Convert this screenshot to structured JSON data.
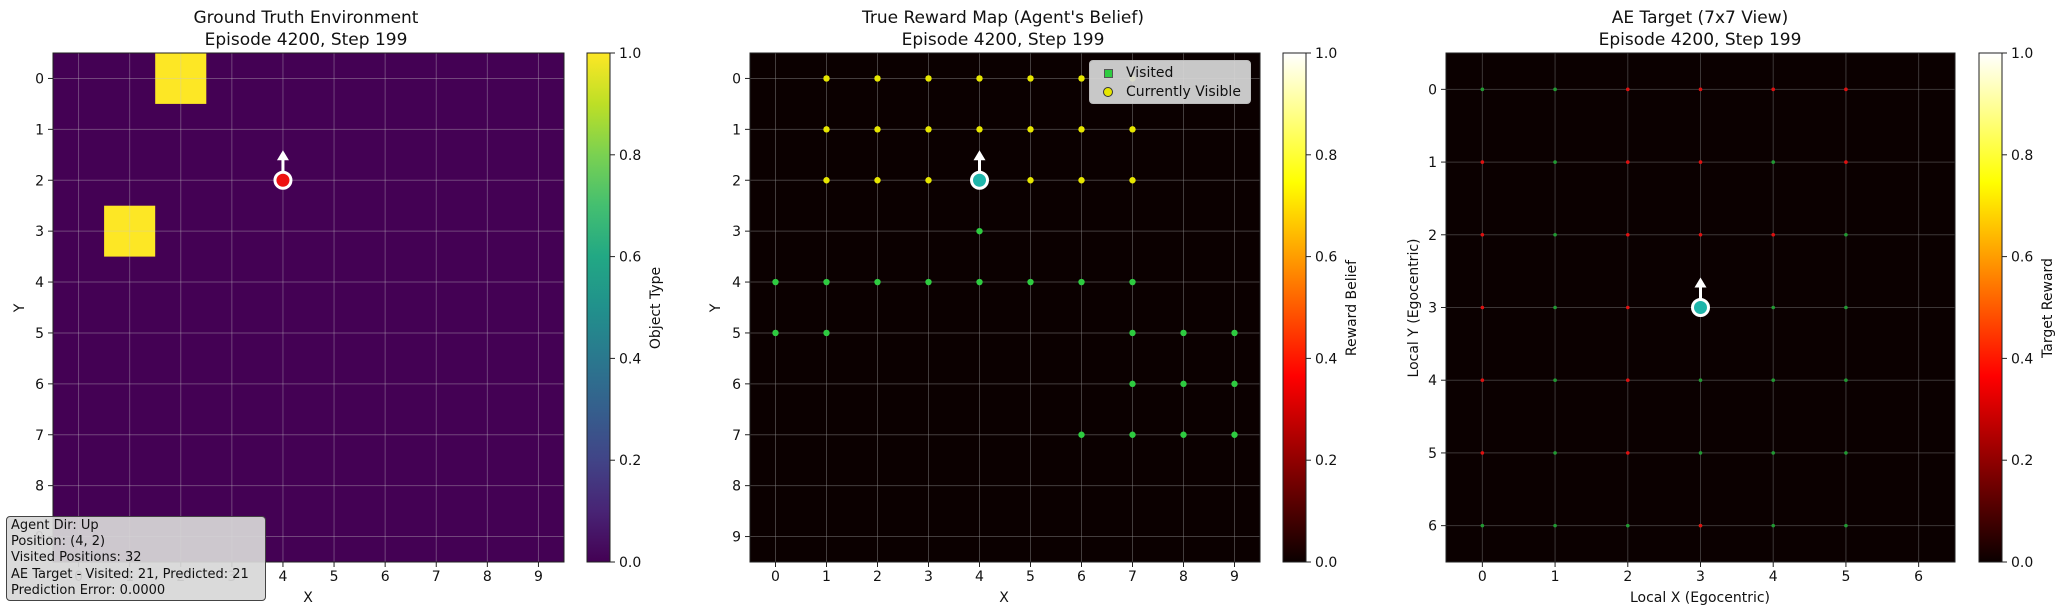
{
  "chart_data": [
    {
      "type": "heatmap",
      "title": "Ground Truth Environment",
      "subtitle": "Episode 4200, Step 199",
      "xlabel": "X",
      "ylabel": "Y",
      "x_ticks": [
        "0",
        "1",
        "2",
        "3",
        "4",
        "5",
        "6",
        "7",
        "8",
        "9"
      ],
      "y_ticks": [
        "0",
        "1",
        "2",
        "3",
        "4",
        "5",
        "6",
        "7",
        "8",
        "9"
      ],
      "grid_size": 10,
      "background_value": 0.0,
      "cells": [
        {
          "x": 2,
          "y": 0,
          "value": 1.0
        },
        {
          "x": 1,
          "y": 3,
          "value": 1.0
        }
      ],
      "agent": {
        "x": 4,
        "y": 2,
        "direction": "up",
        "color": "#ee1111"
      },
      "colorbar": {
        "label": "Object Type",
        "colormap": "viridis",
        "ticks": [
          "0.0",
          "0.2",
          "0.4",
          "0.6",
          "0.8",
          "1.0"
        ],
        "range": [
          0,
          1
        ]
      },
      "info_box": [
        "Agent Dir: Up",
        "Position: (4, 2)",
        "Visited Positions: 32",
        "AE Target - Visited: 21, Predicted: 21",
        "Prediction Error: 0.0000"
      ]
    },
    {
      "type": "heatmap",
      "title": "True Reward Map (Agent's Belief)",
      "subtitle": "Episode 4200, Step 199",
      "xlabel": "X",
      "ylabel": "Y",
      "x_ticks": [
        "0",
        "1",
        "2",
        "3",
        "4",
        "5",
        "6",
        "7",
        "8",
        "9"
      ],
      "y_ticks": [
        "0",
        "1",
        "2",
        "3",
        "4",
        "5",
        "6",
        "7",
        "8",
        "9"
      ],
      "grid_size": 10,
      "background_value": 0.0,
      "visited": [
        [
          0,
          4
        ],
        [
          1,
          4
        ],
        [
          2,
          4
        ],
        [
          3,
          4
        ],
        [
          4,
          4
        ],
        [
          5,
          4
        ],
        [
          6,
          4
        ],
        [
          7,
          4
        ],
        [
          4,
          3
        ],
        [
          0,
          5
        ],
        [
          1,
          5
        ],
        [
          7,
          5
        ],
        [
          8,
          5
        ],
        [
          9,
          5
        ],
        [
          7,
          6
        ],
        [
          8,
          6
        ],
        [
          9,
          6
        ],
        [
          6,
          7
        ],
        [
          7,
          7
        ],
        [
          8,
          7
        ],
        [
          9,
          7
        ]
      ],
      "visible": [
        [
          1,
          0
        ],
        [
          2,
          0
        ],
        [
          3,
          0
        ],
        [
          4,
          0
        ],
        [
          5,
          0
        ],
        [
          6,
          0
        ],
        [
          7,
          0
        ],
        [
          1,
          1
        ],
        [
          2,
          1
        ],
        [
          3,
          1
        ],
        [
          4,
          1
        ],
        [
          5,
          1
        ],
        [
          6,
          1
        ],
        [
          7,
          1
        ],
        [
          1,
          2
        ],
        [
          2,
          2
        ],
        [
          3,
          2
        ],
        [
          5,
          2
        ],
        [
          6,
          2
        ],
        [
          7,
          2
        ]
      ],
      "agent": {
        "x": 4,
        "y": 2,
        "direction": "up",
        "color": "#1fb5aa"
      },
      "legend": {
        "visited_label": "Visited",
        "visible_label": "Currently Visible",
        "placement": "top-right"
      },
      "colorbar": {
        "label": "Reward Belief",
        "colormap": "hot",
        "ticks": [
          "0.0",
          "0.2",
          "0.4",
          "0.6",
          "0.8",
          "1.0"
        ],
        "range": [
          0,
          1
        ]
      }
    },
    {
      "type": "heatmap",
      "title": "AE Target (7x7 View)",
      "subtitle": "Episode 4200, Step 199",
      "xlabel": "Local X (Egocentric)",
      "ylabel": "Local Y (Egocentric)",
      "x_ticks": [
        "0",
        "1",
        "2",
        "3",
        "4",
        "5",
        "6"
      ],
      "y_ticks": [
        "0",
        "1",
        "2",
        "3",
        "4",
        "5",
        "6"
      ],
      "grid_size": 7,
      "background_value": 0.0,
      "green_points": [
        [
          0,
          0
        ],
        [
          1,
          0
        ],
        [
          1,
          1
        ],
        [
          1,
          2
        ],
        [
          1,
          3
        ],
        [
          1,
          4
        ],
        [
          1,
          5
        ],
        [
          1,
          6
        ],
        [
          3,
          3
        ],
        [
          3,
          4
        ],
        [
          3,
          5
        ],
        [
          3,
          6
        ],
        [
          4,
          1
        ],
        [
          4,
          3
        ],
        [
          4,
          4
        ],
        [
          4,
          5
        ],
        [
          4,
          6
        ],
        [
          5,
          2
        ],
        [
          5,
          3
        ],
        [
          5,
          4
        ],
        [
          5,
          5
        ],
        [
          5,
          6
        ],
        [
          0,
          6
        ],
        [
          2,
          6
        ]
      ],
      "red_points": [
        [
          2,
          0
        ],
        [
          3,
          0
        ],
        [
          4,
          0
        ],
        [
          5,
          0
        ],
        [
          0,
          1
        ],
        [
          2,
          1
        ],
        [
          3,
          1
        ],
        [
          5,
          1
        ],
        [
          0,
          2
        ],
        [
          2,
          2
        ],
        [
          3,
          2
        ],
        [
          4,
          2
        ],
        [
          0,
          3
        ],
        [
          2,
          3
        ],
        [
          0,
          4
        ],
        [
          2,
          4
        ],
        [
          0,
          5
        ],
        [
          2,
          5
        ],
        [
          3,
          6
        ]
      ],
      "agent": {
        "x": 3,
        "y": 3,
        "direction": "up",
        "color": "#1fb5aa"
      },
      "colorbar": {
        "label": "Target Reward",
        "colormap": "hot",
        "ticks": [
          "0.0",
          "0.2",
          "0.4",
          "0.6",
          "0.8",
          "1.0"
        ],
        "range": [
          0,
          1
        ]
      }
    }
  ]
}
